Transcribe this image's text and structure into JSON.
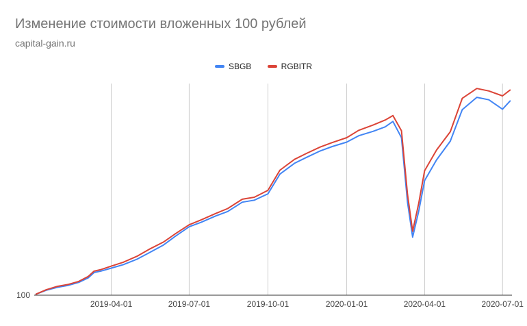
{
  "header": {
    "title": "Изменение стоимости вложенных 100 рублей",
    "subtitle": "capital-gain.ru"
  },
  "chart_data": {
    "type": "line",
    "title": "Изменение стоимости вложенных 100 рублей",
    "subtitle": "capital-gain.ru",
    "xlabel": "",
    "ylabel": "",
    "y_tick_labels": [
      "100"
    ],
    "x_tick_labels": [
      "2019-04-01",
      "2019-07-01",
      "2019-10-01",
      "2020-01-01",
      "2020-04-01",
      "2020-07-01"
    ],
    "grid": "vertical",
    "legend_position": "top",
    "series": [
      {
        "name": "SBGB",
        "color": "#4285f4",
        "points": [
          [
            "2019-01-03",
            100.2
          ],
          [
            "2019-01-15",
            101.0
          ],
          [
            "2019-01-28",
            101.6
          ],
          [
            "2019-02-10",
            102.0
          ],
          [
            "2019-02-22",
            102.6
          ],
          [
            "2019-03-05",
            103.5
          ],
          [
            "2019-03-12",
            104.6
          ],
          [
            "2019-03-20",
            104.9
          ],
          [
            "2019-04-01",
            105.5
          ],
          [
            "2019-04-15",
            106.2
          ],
          [
            "2019-05-01",
            107.3
          ],
          [
            "2019-05-15",
            108.6
          ],
          [
            "2019-06-01",
            110.2
          ],
          [
            "2019-06-15",
            112.0
          ],
          [
            "2019-07-01",
            113.9
          ],
          [
            "2019-07-15",
            114.8
          ],
          [
            "2019-08-01",
            116.1
          ],
          [
            "2019-08-15",
            117.0
          ],
          [
            "2019-09-01",
            118.9
          ],
          [
            "2019-09-15",
            119.3
          ],
          [
            "2019-10-01",
            120.6
          ],
          [
            "2019-10-15",
            124.6
          ],
          [
            "2019-11-01",
            126.8
          ],
          [
            "2019-11-15",
            128.0
          ],
          [
            "2019-12-01",
            129.3
          ],
          [
            "2019-12-15",
            130.2
          ],
          [
            "2020-01-01",
            131.1
          ],
          [
            "2020-01-15",
            132.4
          ],
          [
            "2020-02-01",
            133.3
          ],
          [
            "2020-02-15",
            134.2
          ],
          [
            "2020-02-24",
            135.3
          ],
          [
            "2020-03-05",
            132.0
          ],
          [
            "2020-03-12",
            118.9
          ],
          [
            "2020-03-18",
            111.8
          ],
          [
            "2020-03-25",
            117.0
          ],
          [
            "2020-04-01",
            123.3
          ],
          [
            "2020-04-15",
            127.5
          ],
          [
            "2020-05-01",
            131.3
          ],
          [
            "2020-05-15",
            137.7
          ],
          [
            "2020-06-01",
            140.2
          ],
          [
            "2020-06-15",
            139.7
          ],
          [
            "2020-07-01",
            137.8
          ],
          [
            "2020-07-10",
            139.5
          ]
        ]
      },
      {
        "name": "RGBITR",
        "color": "#db4437",
        "points": [
          [
            "2019-01-03",
            100.2
          ],
          [
            "2019-01-15",
            101.1
          ],
          [
            "2019-01-28",
            101.8
          ],
          [
            "2019-02-10",
            102.2
          ],
          [
            "2019-02-22",
            102.8
          ],
          [
            "2019-03-05",
            103.8
          ],
          [
            "2019-03-12",
            104.9
          ],
          [
            "2019-03-20",
            105.2
          ],
          [
            "2019-04-01",
            105.9
          ],
          [
            "2019-04-15",
            106.7
          ],
          [
            "2019-05-01",
            107.9
          ],
          [
            "2019-05-15",
            109.3
          ],
          [
            "2019-06-01",
            110.8
          ],
          [
            "2019-06-15",
            112.5
          ],
          [
            "2019-07-01",
            114.3
          ],
          [
            "2019-07-15",
            115.3
          ],
          [
            "2019-08-01",
            116.6
          ],
          [
            "2019-08-15",
            117.6
          ],
          [
            "2019-09-01",
            119.5
          ],
          [
            "2019-09-15",
            119.9
          ],
          [
            "2019-10-01",
            121.3
          ],
          [
            "2019-10-15",
            125.4
          ],
          [
            "2019-11-01",
            127.6
          ],
          [
            "2019-11-15",
            128.8
          ],
          [
            "2019-12-01",
            130.1
          ],
          [
            "2019-12-15",
            131.0
          ],
          [
            "2020-01-01",
            132.0
          ],
          [
            "2020-01-15",
            133.5
          ],
          [
            "2020-02-01",
            134.6
          ],
          [
            "2020-02-15",
            135.6
          ],
          [
            "2020-02-24",
            136.5
          ],
          [
            "2020-03-05",
            133.4
          ],
          [
            "2020-03-12",
            120.5
          ],
          [
            "2020-03-18",
            113.0
          ],
          [
            "2020-03-25",
            118.6
          ],
          [
            "2020-04-01",
            125.3
          ],
          [
            "2020-04-15",
            129.5
          ],
          [
            "2020-05-01",
            133.2
          ],
          [
            "2020-05-15",
            140.0
          ],
          [
            "2020-06-01",
            142.0
          ],
          [
            "2020-06-15",
            141.5
          ],
          [
            "2020-07-01",
            140.5
          ],
          [
            "2020-07-10",
            141.7
          ]
        ]
      }
    ],
    "x_range": [
      "2019-01-01",
      "2020-07-12"
    ],
    "y_range": [
      100,
      143
    ]
  }
}
